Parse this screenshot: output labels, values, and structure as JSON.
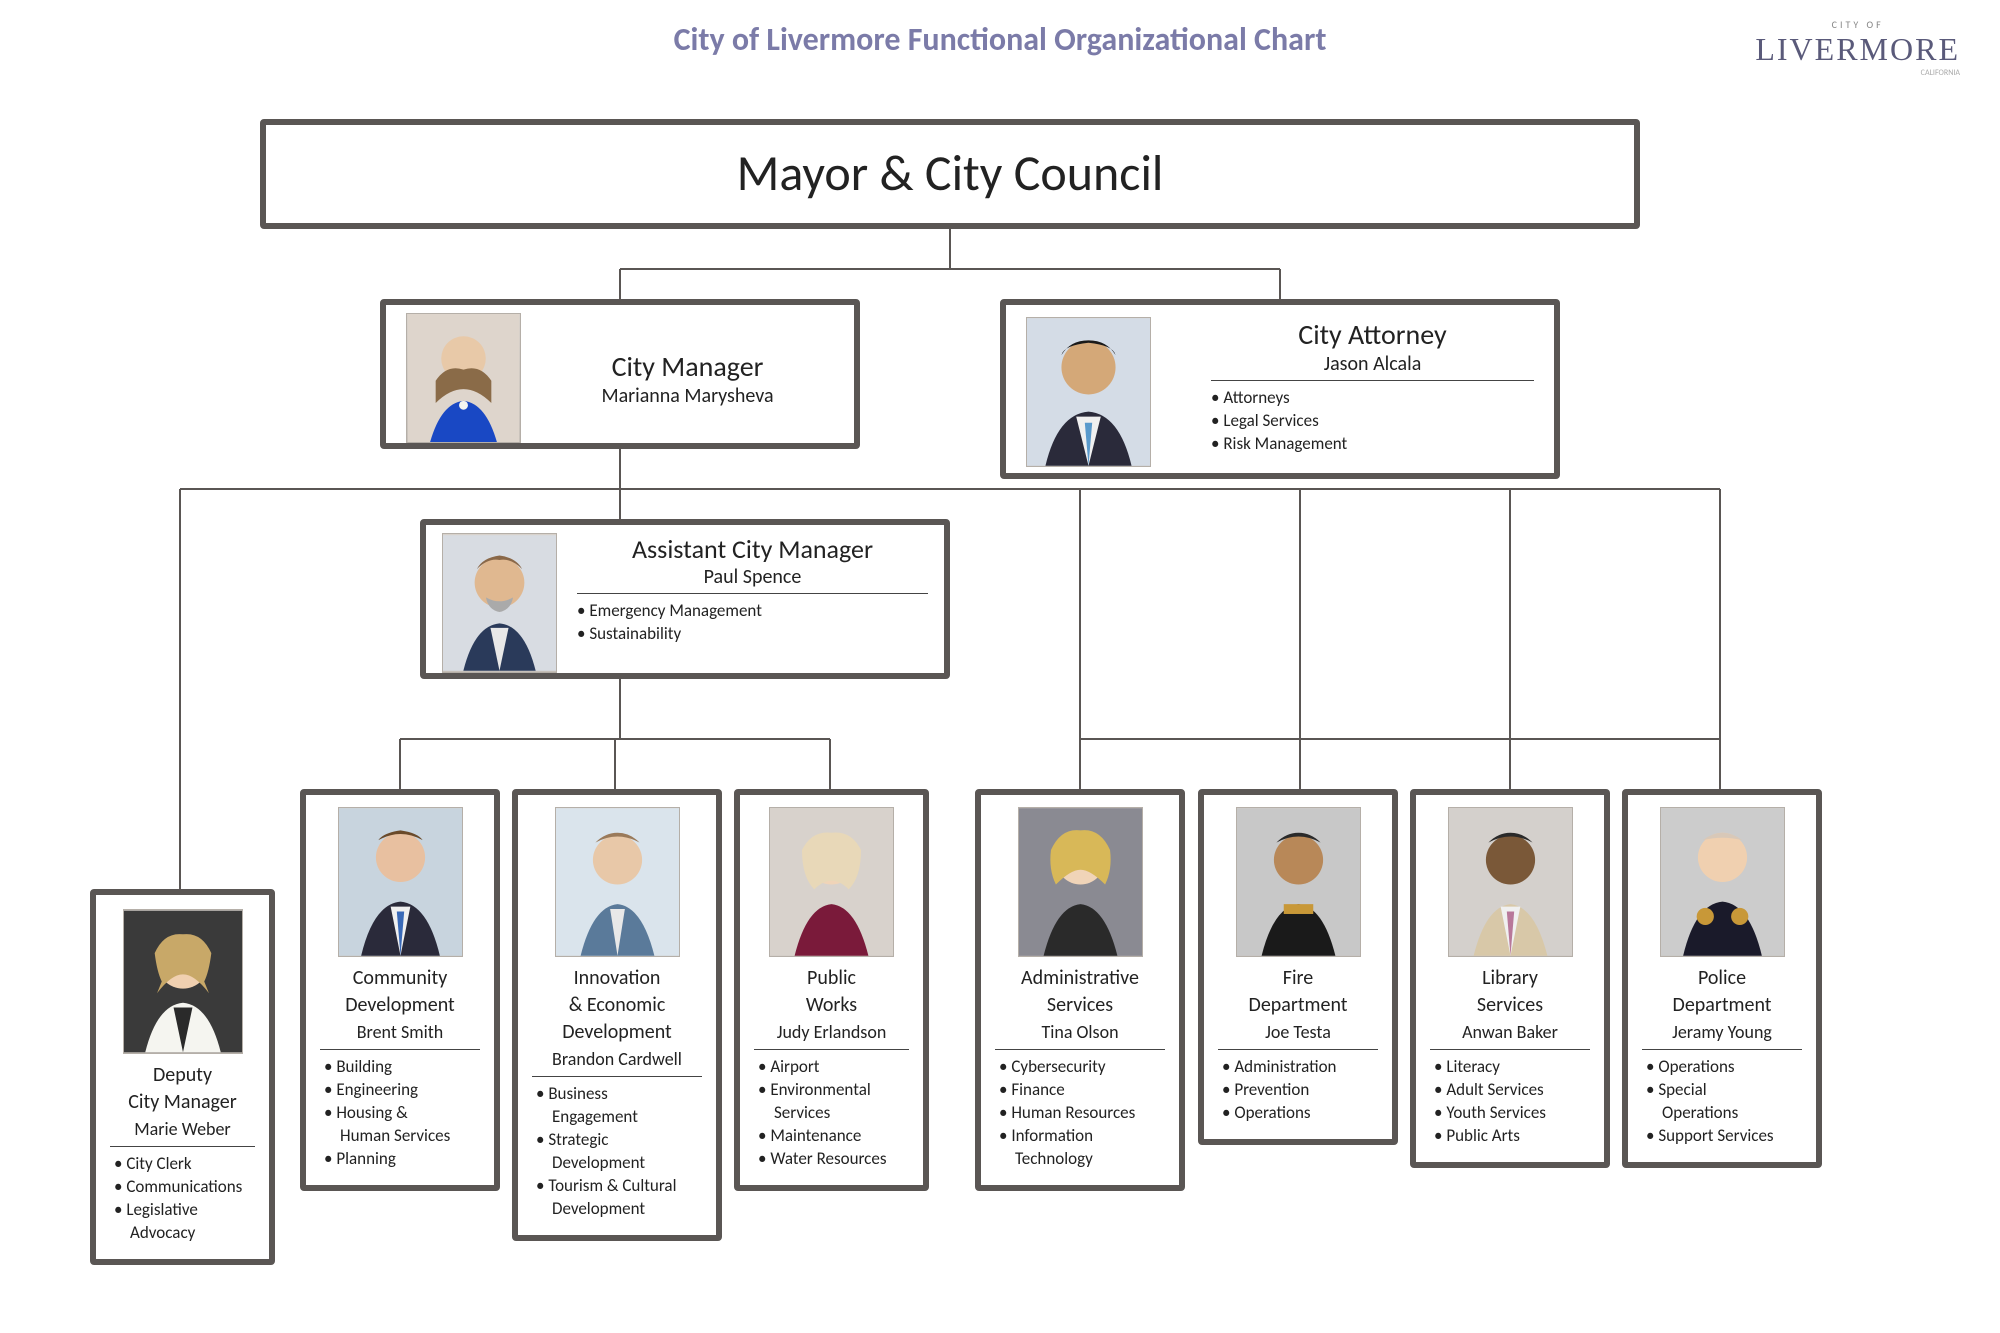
{
  "title": "City of Livermore Functional Organizational Chart",
  "logo": {
    "sub": "CITY OF",
    "main": "LIVERMORE",
    "tag": "CALIFORNIA"
  },
  "colors": {
    "title": "#7b7ba8",
    "border": "#5a5654",
    "text": "#222222",
    "bg": "#ffffff"
  },
  "top": {
    "title": "Mayor & City Council"
  },
  "row2": {
    "manager": {
      "role": "City Manager",
      "name": "Marianna Marysheva"
    },
    "attorney": {
      "role": "City Attorney",
      "name": "Jason Alcala",
      "bullets": [
        "Attorneys",
        "Legal Services",
        "Risk Management"
      ]
    }
  },
  "acm": {
    "role": "Assistant City Manager",
    "name": "Paul Spence",
    "bullets": [
      "Emergency Management",
      "Sustainability"
    ]
  },
  "deputy": {
    "role_l1": "Deputy",
    "role_l2": "City Manager",
    "name": "Marie Weber",
    "bullets": [
      "City Clerk",
      "Communications",
      "Legislative Advocacy"
    ]
  },
  "depts": [
    {
      "title_l1": "Community",
      "title_l2": "Development",
      "name": "Brent Smith",
      "bullets": [
        "Building",
        "Engineering",
        "Housing &  Human Services",
        "Planning"
      ]
    },
    {
      "title_l1": "Innovation",
      "title_l2": "& Economic",
      "title_l3": "Development",
      "name": "Brandon Cardwell",
      "bullets": [
        "Business Engagement",
        "Strategic Development",
        "Tourism & Cultural Development"
      ]
    },
    {
      "title_l1": "Public",
      "title_l2": "Works",
      "name": "Judy Erlandson",
      "bullets": [
        "Airport",
        "Environmental Services",
        "Maintenance",
        "Water Resources"
      ]
    },
    {
      "title_l1": "Administrative",
      "title_l2": "Services",
      "name": "Tina Olson",
      "bullets": [
        "Cybersecurity",
        "Finance",
        "Human Resources",
        "Information Technology"
      ]
    },
    {
      "title_l1": "Fire",
      "title_l2": "Department",
      "name": "Joe Testa",
      "bullets": [
        "Administration",
        "Prevention",
        "Operations"
      ]
    },
    {
      "title_l1": "Library",
      "title_l2": "Services",
      "name": "Anwan Baker",
      "bullets": [
        "Literacy",
        "Adult Services",
        "Youth Services",
        "Public Arts"
      ]
    },
    {
      "title_l1": "Police",
      "title_l2": "Department",
      "name": "Jeramy Young",
      "bullets": [
        "Operations",
        "Special Operations",
        "Support Services"
      ]
    }
  ]
}
